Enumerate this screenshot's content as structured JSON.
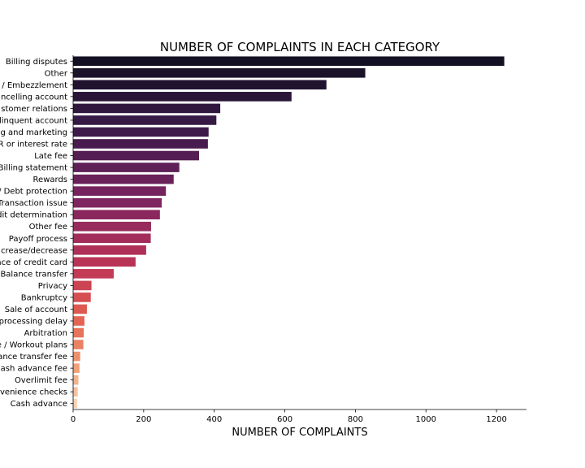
{
  "chart_data": {
    "type": "bar",
    "orientation": "horizontal",
    "title": "NUMBER OF COMPLAINTS IN EACH CATEGORY",
    "xlabel": "NUMBER OF COMPLAINTS",
    "ylabel": "",
    "xlim": [
      0,
      1285
    ],
    "xticks": [
      0,
      200,
      400,
      600,
      800,
      1000,
      1200
    ],
    "grid": false,
    "palette": "rocket",
    "categories": [
      "Billing disputes",
      "Other",
      "Identity theft / Fraud / Embezzlement",
      "Closing/Cancelling account",
      "Customer service / Customer relations",
      "Collection debt dispute / Delinquent account",
      "Advertising and marketing",
      "APR or interest rate",
      "Late fee",
      "Billing statement",
      "Rewards",
      "Credit card protection / Debt protection",
      "Transaction issue",
      "Credit line increase/decrease / Credit determination",
      "Other fee",
      "Payoff process",
      "Credit line increase/decrease",
      "Application processing delay / Balance of credit card",
      "Balance transfer",
      "Privacy",
      "Bankruptcy",
      "Sale of account",
      "Payment processing delay",
      "Arbitration",
      "Forbearance / Workout plans",
      "Balance transfer fee",
      "Cash advance fee",
      "Overlimit fee",
      "Convenience checks",
      "Cash advance"
    ],
    "tick_labels": [
      "Billing disputes",
      "Other",
      "/ Embezzlement",
      "ncelling account",
      "stomer relations",
      "linquent account",
      "g and marketing",
      "R or interest rate",
      "Late fee",
      "Billing statement",
      "Rewards",
      "/ Debt protection",
      "Transaction issue",
      "dit determination",
      "Other fee",
      "Payoff process",
      "crease/decrease",
      "ace of credit card",
      "Balance transfer",
      "Privacy",
      "Bankruptcy",
      "Sale of account",
      "processing delay",
      "Arbitration",
      "e / Workout plans",
      "ance transfer fee",
      "ash advance fee",
      "Overlimit fee",
      "venience checks",
      "Cash advance"
    ],
    "values": [
      1222,
      828,
      718,
      619,
      417,
      406,
      384,
      382,
      357,
      301,
      285,
      263,
      251,
      246,
      221,
      220,
      207,
      177,
      115,
      52,
      50,
      39,
      32,
      30,
      29,
      20,
      18,
      15,
      13,
      11
    ]
  }
}
